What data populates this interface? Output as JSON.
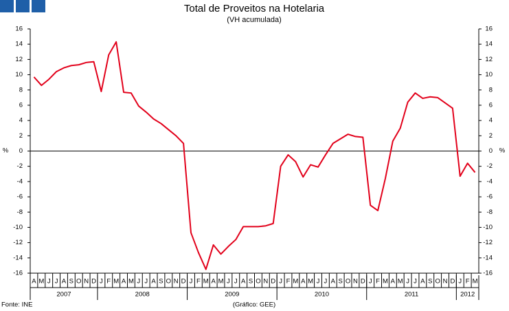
{
  "chart_data": {
    "type": "line",
    "title": "Total de Proveitos na Hotelaria",
    "subtitle": "(VH acumulada)",
    "y_label": "%",
    "y2_label": "%",
    "source": "Fonte: INE",
    "note": "(Gráfico: GEE)",
    "categories": [
      "A",
      "M",
      "J",
      "J",
      "A",
      "S",
      "O",
      "N",
      "D",
      "J",
      "F",
      "M",
      "A",
      "M",
      "J",
      "J",
      "A",
      "S",
      "O",
      "N",
      "D",
      "J",
      "F",
      "M",
      "A",
      "M",
      "J",
      "J",
      "A",
      "S",
      "O",
      "N",
      "D",
      "J",
      "F",
      "M",
      "A",
      "M",
      "J",
      "J",
      "A",
      "S",
      "O",
      "N",
      "D",
      "J",
      "F",
      "M",
      "A",
      "M",
      "J",
      "J",
      "A",
      "S",
      "O",
      "N",
      "D",
      "J",
      "F",
      "M"
    ],
    "years": [
      "2007",
      "2008",
      "2009",
      "2010",
      "2011",
      "2012"
    ],
    "series": [
      {
        "color": "#e2001a",
        "values": [
          9.7,
          8.6,
          9.4,
          10.4,
          10.9,
          11.2,
          11.3,
          11.6,
          11.7,
          7.8,
          12.6,
          14.3,
          7.7,
          7.6,
          5.9,
          5.1,
          4.2,
          3.6,
          2.8,
          2.0,
          1.0,
          -10.7,
          -13.3,
          -15.5,
          -12.3,
          -13.5,
          -12.5,
          -11.6,
          -9.9,
          -9.9,
          -9.9,
          -9.8,
          -9.5,
          -2.0,
          -0.5,
          -1.4,
          -3.4,
          -1.8,
          -2.1,
          -0.5,
          1.0,
          1.6,
          2.2,
          1.9,
          1.8,
          -7.1,
          -7.8,
          -3.6,
          1.3,
          3.0,
          6.4,
          7.6,
          6.9,
          7.1,
          7.0,
          6.3,
          5.6,
          -3.3,
          -1.6,
          -2.8
        ]
      }
    ],
    "ylim": [
      -16,
      16
    ],
    "yticks": [
      -16,
      -14,
      -12,
      -10,
      -8,
      -6,
      -4,
      -2,
      0,
      2,
      4,
      6,
      8,
      10,
      12,
      14,
      16
    ],
    "y2lim": [
      -16,
      16
    ],
    "y2ticks": [
      -16,
      -14,
      -12,
      -10,
      -8,
      -6,
      -4,
      -2,
      0,
      2,
      4,
      6,
      8,
      10,
      12,
      14,
      16
    ],
    "grid": false
  }
}
